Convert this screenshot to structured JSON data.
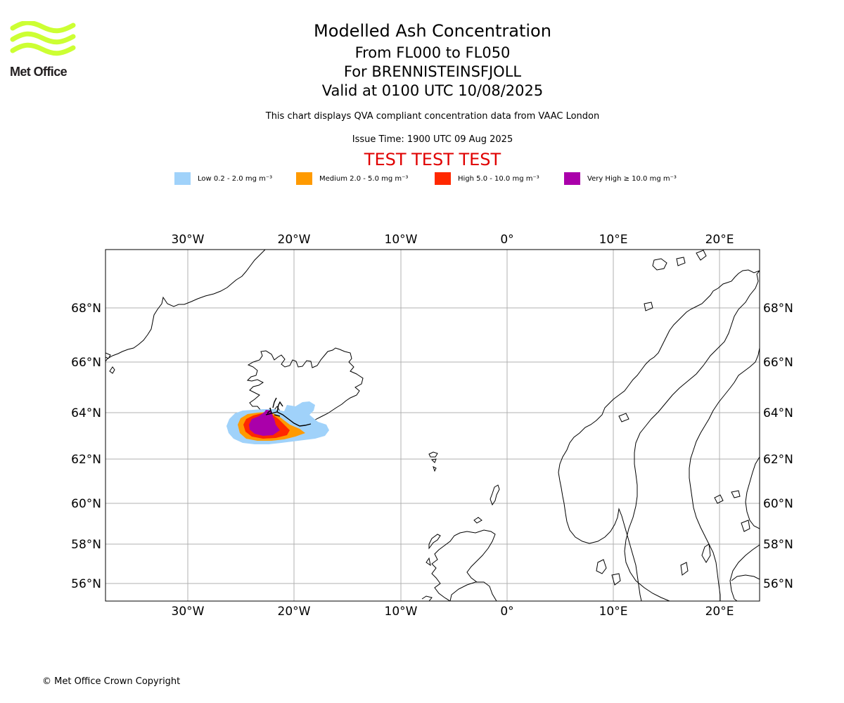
{
  "logo": {
    "text": "Met Office",
    "color": "#ccff33"
  },
  "title": "Modelled Ash Concentration",
  "levels": "From FL000 to FL050",
  "volcano": "For BRENNISTEINSFJOLL",
  "valid": "Valid at 0100 UTC 10/08/2025",
  "description": "This chart displays QVA compliant concentration data from VAAC London",
  "issue": "Issue Time: 1900 UTC 09 Aug 2025",
  "test_banner": "TEST TEST TEST",
  "legend": [
    {
      "label": "Low 0.2 - 2.0 mg m⁻³",
      "color": "#a0d2fa"
    },
    {
      "label": "Medium 2.0 - 5.0 mg m⁻³",
      "color": "#ff9a00"
    },
    {
      "label": "High 5.0 - 10.0 mg m⁻³",
      "color": "#ff2800"
    },
    {
      "label": "Very High ≥ 10.0 mg m⁻³",
      "color": "#aa00aa"
    }
  ],
  "map": {
    "lon_ticks": [
      "30°W",
      "20°W",
      "10°W",
      "0°",
      "10°E",
      "20°E"
    ],
    "lat_ticks": [
      "68°N",
      "66°N",
      "64°N",
      "62°N",
      "60°N",
      "58°N",
      "56°N"
    ],
    "gridline_color": "#b0b0b0"
  },
  "copyright": "© Met Office Crown Copyright"
}
